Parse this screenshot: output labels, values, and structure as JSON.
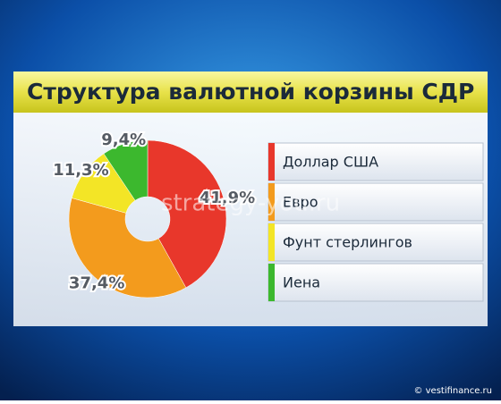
{
  "chart_data": {
    "type": "donut",
    "title": "Структура валютной корзины СДР",
    "categories": [
      "Доллар США",
      "Евро",
      "Фунт стерлингов",
      "Иена"
    ],
    "values": [
      41.9,
      37.4,
      11.3,
      9.4
    ],
    "value_labels": [
      "41,9%",
      "37,4%",
      "11,3%",
      "9,4%"
    ],
    "colors": [
      "#e8372b",
      "#f39b1d",
      "#f3e526",
      "#3cb82e"
    ]
  },
  "watermark": "strategy-you.ru",
  "credit": "© vestifinance.ru"
}
